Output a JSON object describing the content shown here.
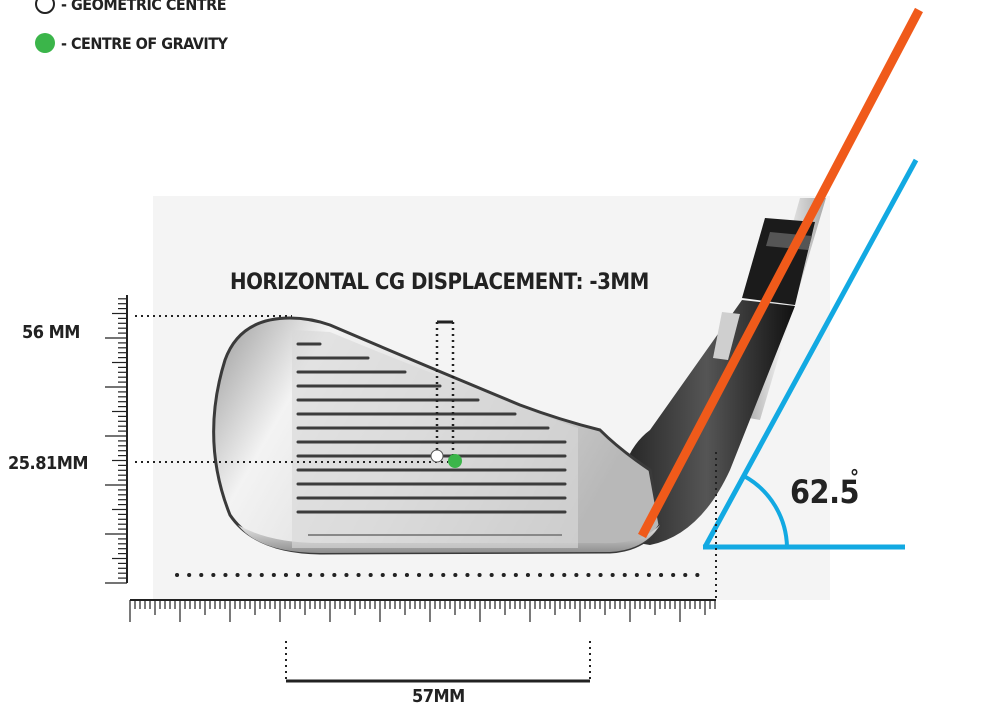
{
  "legend": {
    "geometric_label": "- Geometric Centre",
    "gravity_label": "- Centre of Gravity",
    "geometric_color": "#ffffff",
    "gravity_color": "#3bb54a"
  },
  "measurements": {
    "title": "Horizontal CG Displacement: -3mm",
    "height_label": "56 MM",
    "cg_height_label": "25.81MM",
    "width_label": "57MM",
    "lie_angle_value": "62.5",
    "lie_angle_unit": "°"
  },
  "colors": {
    "shaft_line": "#f05a1a",
    "angle_line": "#12a9e2",
    "text": "#222222"
  }
}
